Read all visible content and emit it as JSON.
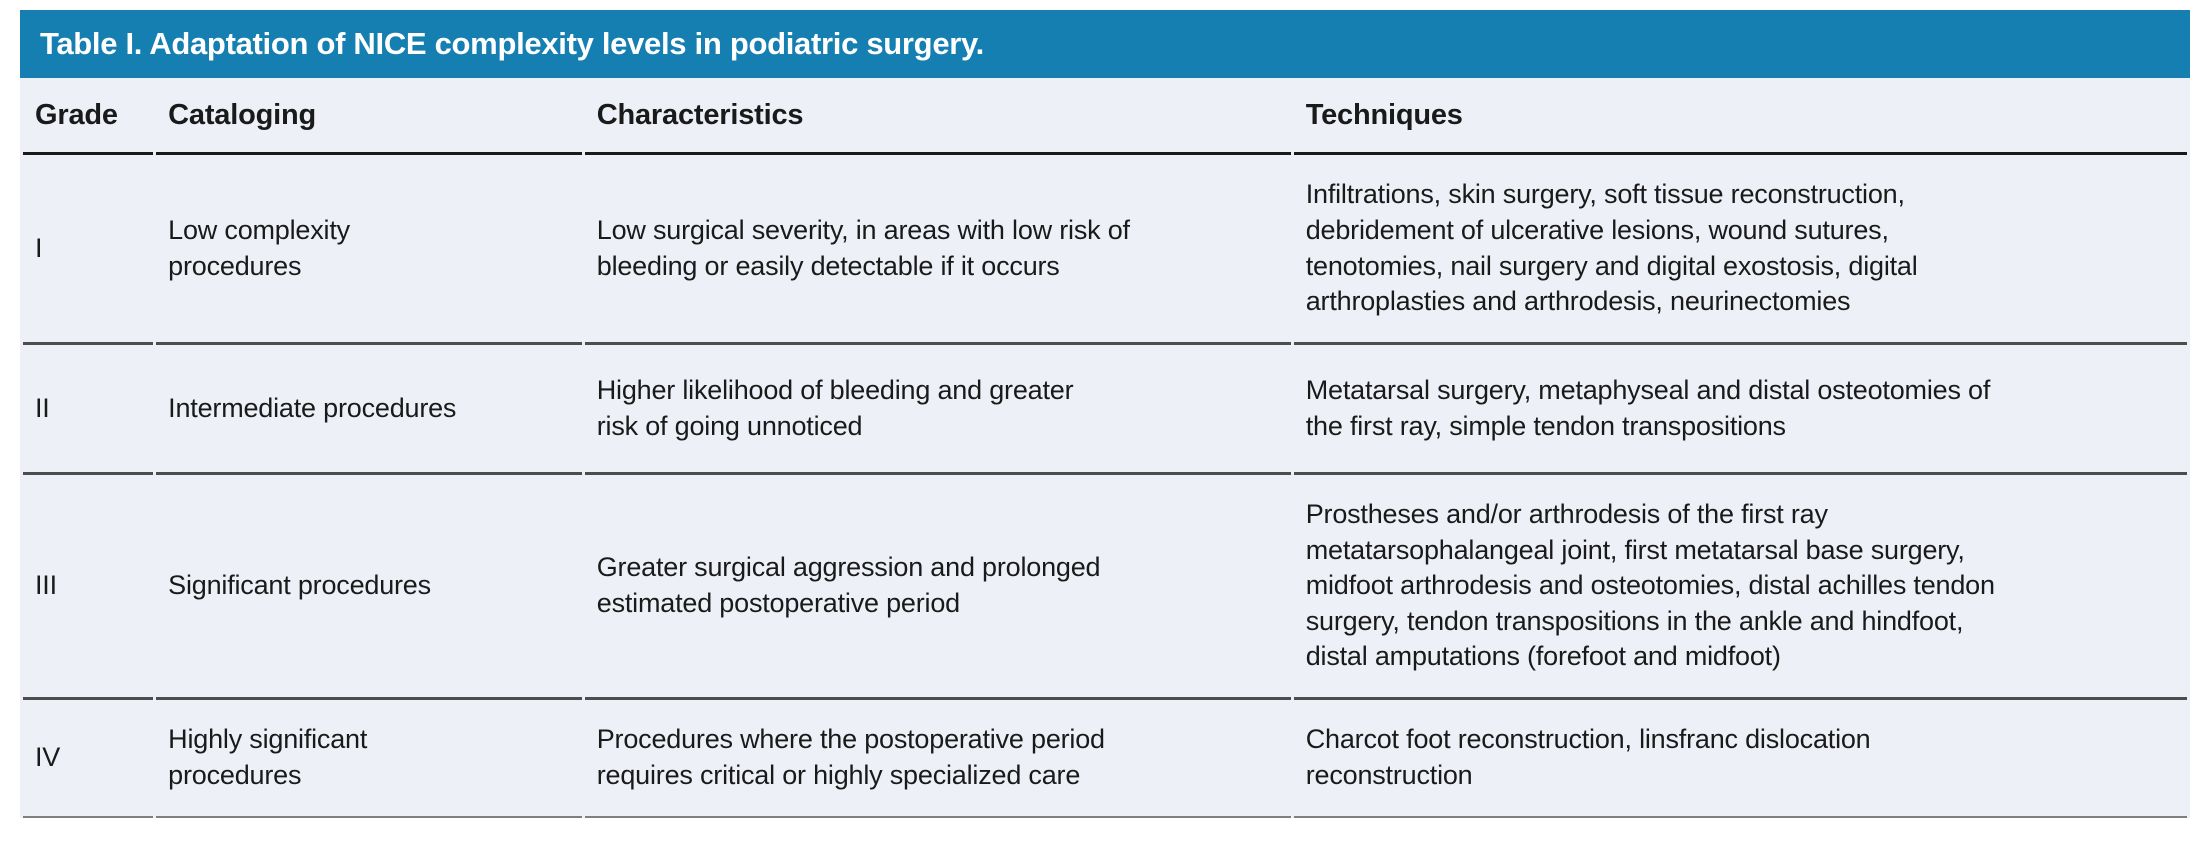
{
  "title": "Table I. Adaptation of NICE complexity levels in podiatric surgery.",
  "columns": {
    "grade": "Grade",
    "cataloging": "Cataloging",
    "characteristics": "Characteristics",
    "techniques": "Techniques"
  },
  "rows": [
    {
      "grade": "I",
      "cataloging": "Low complexity\nprocedures",
      "characteristics": "Low surgical severity, in areas with low risk of\nbleeding or easily detectable if it occurs",
      "techniques": "Infiltrations, skin surgery, soft tissue reconstruction,\ndebridement of ulcerative lesions, wound sutures,\ntenotomies, nail surgery and digital exostosis, digital\narthroplasties and arthrodesis, neurinectomies"
    },
    {
      "grade": "II",
      "cataloging": "Intermediate procedures",
      "characteristics": "Higher likelihood of bleeding and greater\nrisk of going unnoticed",
      "techniques": "Metatarsal surgery, metaphyseal and distal osteotomies of\nthe first ray, simple tendon transpositions"
    },
    {
      "grade": "III",
      "cataloging": "Significant procedures",
      "characteristics": "Greater surgical aggression and prolonged\nestimated postoperative period",
      "techniques": "Prostheses and/or arthrodesis of the first ray\nmetatarsophalangeal joint, first metatarsal base surgery,\nmidfoot arthrodesis and osteotomies, distal achilles tendon\nsurgery, tendon transpositions in the ankle and hindfoot,\ndistal amputations (forefoot and midfoot)"
    },
    {
      "grade": "IV",
      "cataloging": "Highly significant\nprocedures",
      "characteristics": "Procedures where the postoperative period\nrequires critical or highly specialized care",
      "techniques": "Charcot foot reconstruction, linsfranc dislocation\nreconstruction"
    }
  ],
  "colors": {
    "title_bar_bg": "#157FB1",
    "row_bg": "#EDF1F7",
    "header_rule": "#1A1A1A",
    "row_rule": "#4D4D4D",
    "bottom_rule": "#7F7F7F",
    "text": "#1A1A1A",
    "title_text": "#FFFFFF"
  }
}
